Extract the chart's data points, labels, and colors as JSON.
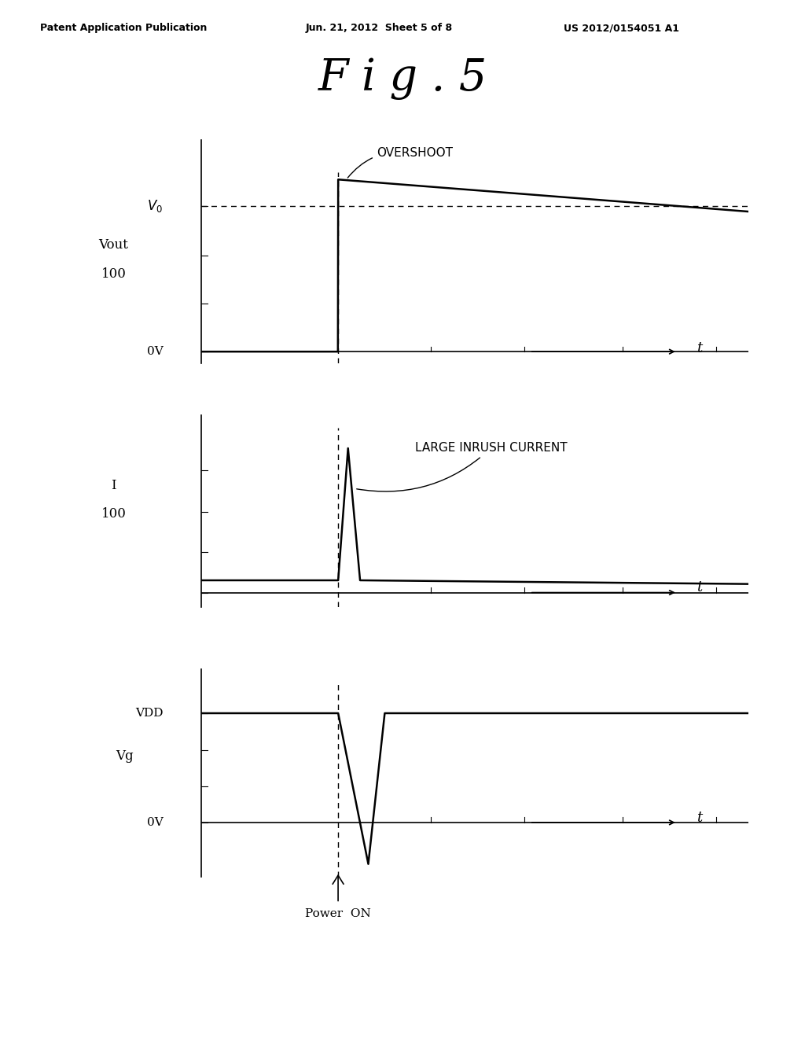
{
  "title": "F i g . 5",
  "patent_left": "Patent Application Publication",
  "patent_mid": "Jun. 21, 2012  Sheet 5 of 8",
  "patent_right": "US 2012/0154051 A1",
  "background_color": "#ffffff",
  "plots": [
    {
      "ylabel_line1": "Vout",
      "ylabel_line2": "100",
      "v0_label": "V0",
      "ov_label": "0V",
      "annotation": "OVERSHOOT",
      "signal": "vout"
    },
    {
      "ylabel_line1": "I",
      "ylabel_line2": "100",
      "annotation": "LARGE INRUSH CURRENT",
      "signal": "current"
    },
    {
      "ylabel": "Vg",
      "vdd_label": "VDD",
      "ov_label": "0V",
      "signal": "vg"
    }
  ],
  "power_on_label": "Power  ON",
  "t_label": "t"
}
